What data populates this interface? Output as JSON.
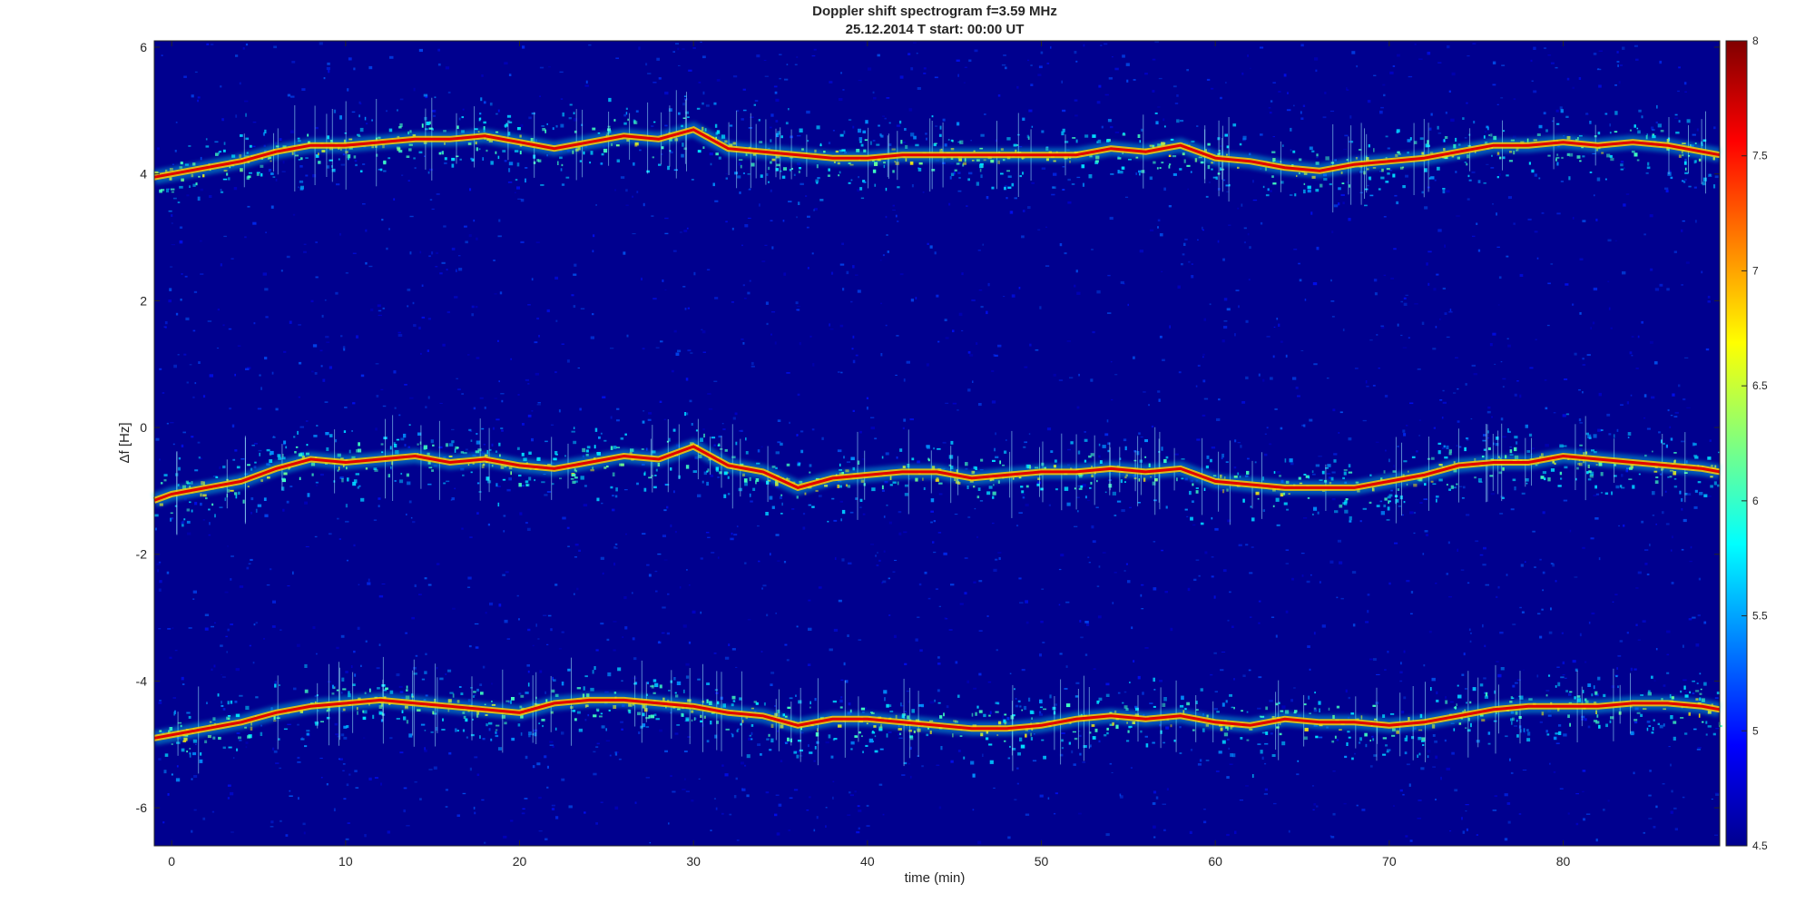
{
  "chart_data": {
    "type": "heatmap",
    "title": "Doppler shift spectrogram f=3.59 MHz",
    "subtitle": "25.12.2014   T start: 00:00 UT",
    "xlabel": "time (min)",
    "ylabel": "Δf [Hz]",
    "xlim": [
      -1,
      89
    ],
    "ylim": [
      -6.6,
      6.1
    ],
    "x_ticks": [
      0,
      10,
      20,
      30,
      40,
      50,
      60,
      70,
      80
    ],
    "y_ticks": [
      6,
      4,
      2,
      0,
      -2,
      -4,
      -6
    ],
    "x_tick_labels": [
      "0",
      "10",
      "20",
      "30",
      "40",
      "50",
      "60",
      "70",
      "80"
    ],
    "y_tick_labels": [
      "6",
      "4",
      "2",
      "0",
      "-2",
      "-4",
      "-6"
    ],
    "colormap": "jet",
    "colorbar": {
      "range": [
        4.5,
        8
      ],
      "ticks": [
        8,
        7.5,
        7,
        6.5,
        6,
        5.5,
        5,
        4.5
      ],
      "tick_labels": [
        "8",
        "7.5",
        "7",
        "6.5",
        "6",
        "5.5",
        "5",
        "4.5"
      ]
    },
    "grid": false,
    "series": [
      {
        "x": [
          -1,
          0,
          2,
          4,
          6,
          8,
          10,
          12,
          14,
          16,
          18,
          20,
          22,
          24,
          26,
          28,
          30,
          32,
          34,
          36,
          38,
          40,
          42,
          44,
          46,
          48,
          50,
          52,
          54,
          56,
          58,
          60,
          62,
          64,
          66,
          68,
          70,
          72,
          74,
          76,
          78,
          80,
          82,
          84,
          86,
          88,
          89
        ],
        "y": [
          3.95,
          4.0,
          4.1,
          4.2,
          4.35,
          4.45,
          4.45,
          4.5,
          4.55,
          4.55,
          4.6,
          4.5,
          4.4,
          4.5,
          4.6,
          4.55,
          4.7,
          4.4,
          4.35,
          4.3,
          4.25,
          4.25,
          4.3,
          4.3,
          4.3,
          4.3,
          4.3,
          4.3,
          4.4,
          4.35,
          4.45,
          4.25,
          4.2,
          4.1,
          4.05,
          4.15,
          4.2,
          4.25,
          4.35,
          4.45,
          4.45,
          4.5,
          4.45,
          4.5,
          4.45,
          4.35,
          4.3
        ]
      },
      {
        "x": [
          -1,
          0,
          2,
          4,
          6,
          8,
          10,
          12,
          14,
          16,
          18,
          20,
          22,
          24,
          26,
          28,
          30,
          32,
          34,
          36,
          38,
          40,
          42,
          44,
          46,
          48,
          50,
          52,
          54,
          56,
          58,
          60,
          62,
          64,
          66,
          68,
          70,
          72,
          74,
          76,
          78,
          80,
          82,
          84,
          86,
          88,
          89
        ],
        "y": [
          -1.15,
          -1.05,
          -0.95,
          -0.85,
          -0.65,
          -0.5,
          -0.55,
          -0.5,
          -0.45,
          -0.55,
          -0.5,
          -0.6,
          -0.65,
          -0.55,
          -0.45,
          -0.5,
          -0.3,
          -0.6,
          -0.7,
          -0.95,
          -0.8,
          -0.75,
          -0.7,
          -0.7,
          -0.8,
          -0.75,
          -0.7,
          -0.7,
          -0.65,
          -0.7,
          -0.65,
          -0.85,
          -0.9,
          -0.95,
          -0.95,
          -0.95,
          -0.85,
          -0.75,
          -0.6,
          -0.55,
          -0.55,
          -0.45,
          -0.5,
          -0.55,
          -0.6,
          -0.65,
          -0.7
        ]
      },
      {
        "x": [
          -1,
          0,
          2,
          4,
          6,
          8,
          10,
          12,
          14,
          16,
          18,
          20,
          22,
          24,
          26,
          28,
          30,
          32,
          34,
          36,
          38,
          40,
          42,
          44,
          46,
          48,
          50,
          52,
          54,
          56,
          58,
          60,
          62,
          64,
          66,
          68,
          70,
          72,
          74,
          76,
          78,
          80,
          82,
          84,
          86,
          88,
          89
        ],
        "y": [
          -4.9,
          -4.85,
          -4.75,
          -4.65,
          -4.5,
          -4.4,
          -4.35,
          -4.3,
          -4.35,
          -4.4,
          -4.45,
          -4.5,
          -4.35,
          -4.3,
          -4.3,
          -4.35,
          -4.4,
          -4.5,
          -4.55,
          -4.7,
          -4.6,
          -4.6,
          -4.65,
          -4.7,
          -4.75,
          -4.75,
          -4.7,
          -4.6,
          -4.55,
          -4.6,
          -4.55,
          -4.65,
          -4.7,
          -4.6,
          -4.65,
          -4.65,
          -4.7,
          -4.65,
          -4.55,
          -4.45,
          -4.4,
          -4.4,
          -4.4,
          -4.35,
          -4.35,
          -4.4,
          -4.45
        ]
      }
    ]
  }
}
